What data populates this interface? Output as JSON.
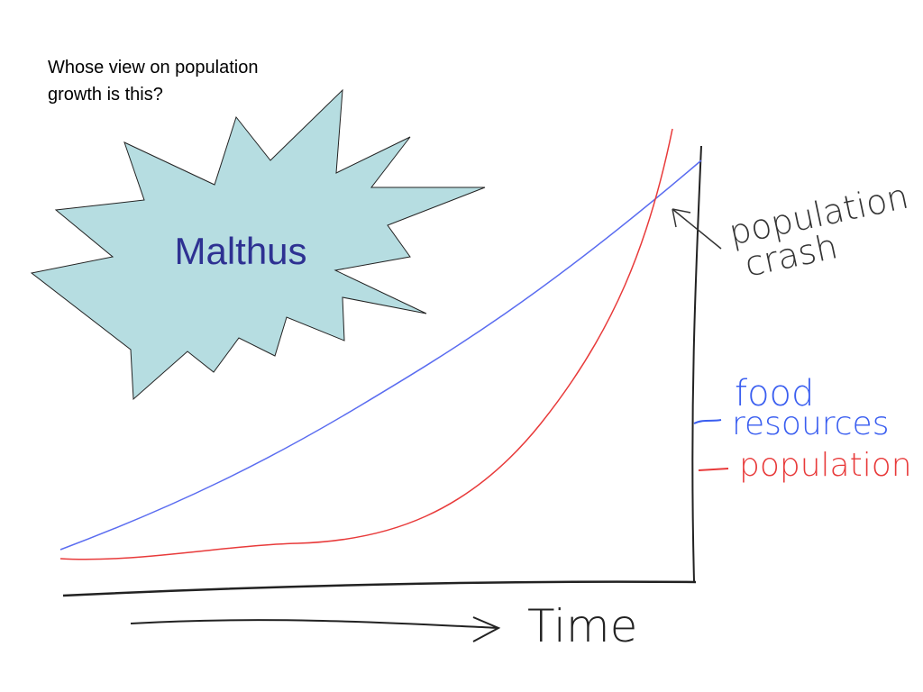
{
  "slide": {
    "question": [
      "Whose view on population",
      "growth is this?"
    ],
    "badge": "Malthus",
    "annotation": [
      "population",
      "crash"
    ],
    "legend": {
      "food": [
        "food",
        "resources"
      ],
      "population": "population"
    },
    "axis_label": "Time"
  }
}
